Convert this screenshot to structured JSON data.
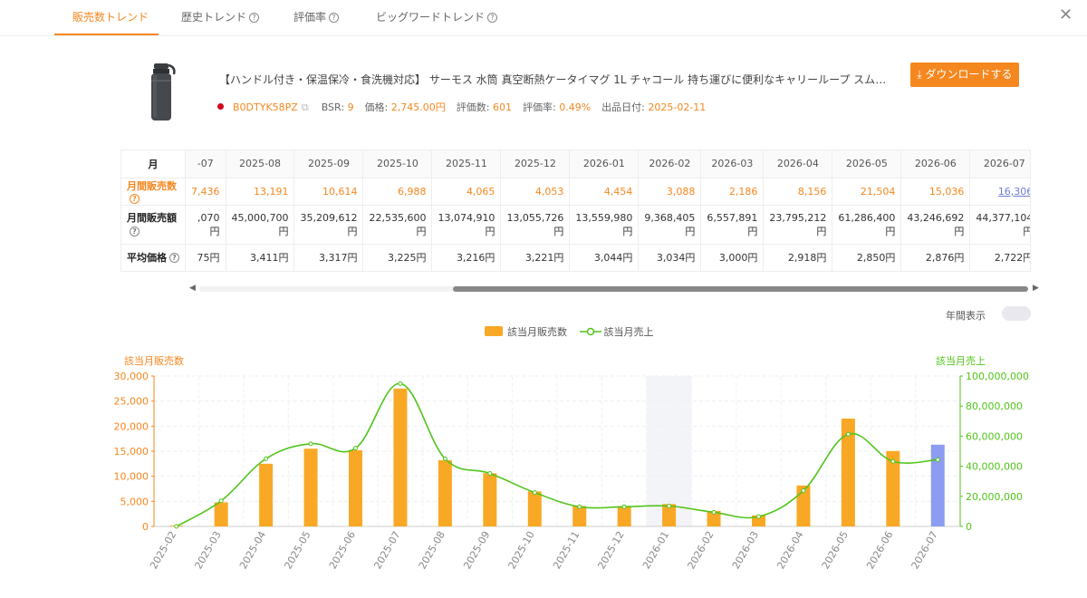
{
  "tabs": [
    {
      "label": "販売数トレンド",
      "active": true
    },
    {
      "label": "歴史トレンド",
      "active": false
    },
    {
      "label": "評価率",
      "active": false
    },
    {
      "label": "ビッグワードトレンド",
      "active": false
    }
  ],
  "product": {
    "title": "【ハンドル付き・保温保冷・食洗機対応】 サーモス 水筒 真空断熱ケータイマグ 1L チャコール 持ち運びに便利なキャリーループ スムーズに飲め...",
    "asin": "B0DTYK58PZ",
    "bsr_label": "BSR:",
    "bsr": "9",
    "price_label": "価格:",
    "price": "2,745.00円",
    "reviews_label": "評価数:",
    "reviews": "601",
    "rating_rate_label": "評価率:",
    "rating_rate": "0.49%",
    "listing_date_label": "出品日付:",
    "listing_date": "2025-02-11"
  },
  "download_label": "ダウンロードする",
  "table": {
    "header_label": "月",
    "months": [
      "-07",
      "2025-08",
      "2025-09",
      "2025-10",
      "2025-11",
      "2025-12",
      "2026-01",
      "2026-02",
      "2026-03",
      "2026-04",
      "2026-05",
      "2026-06",
      "2026-07"
    ],
    "rows": [
      {
        "label": "月間販売数",
        "values": [
          "7,436",
          "13,191",
          "10,614",
          "6,988",
          "4,065",
          "4,053",
          "4,454",
          "3,088",
          "2,186",
          "8,156",
          "21,504",
          "15,036",
          "16,306"
        ]
      },
      {
        "label": "月間販売額",
        "values": [
          ",070",
          "45,000,700",
          "35,209,612",
          "22,535,600",
          "13,074,910",
          "13,055,726",
          "13,559,980",
          "9,368,405",
          "6,557,891",
          "23,795,212",
          "61,286,400",
          "43,246,692",
          "44,377,104"
        ],
        "unit": "円"
      },
      {
        "label": "平均価格",
        "values": [
          "75円",
          "3,411円",
          "3,317円",
          "3,225円",
          "3,216円",
          "3,221円",
          "3,044円",
          "3,034円",
          "3,000円",
          "2,918円",
          "2,850円",
          "2,876円",
          "2,722円"
        ]
      }
    ]
  },
  "yearly_label": "年間表示",
  "legend": {
    "bar": "該当月販売数",
    "line": "該当月売上"
  },
  "colors": {
    "accent": "#f5871f",
    "bar": "#f9a825",
    "bar_current": "#8c9cf0",
    "line": "#52c41a",
    "highlight": "#f3f4f8"
  },
  "chart_data": {
    "type": "bar",
    "categories": [
      "2025-02",
      "2025-03",
      "2025-04",
      "2025-05",
      "2025-06",
      "2025-07",
      "2025-08",
      "2025-09",
      "2025-10",
      "2025-11",
      "2025-12",
      "2026-01",
      "2026-02",
      "2026-03",
      "2026-04",
      "2026-05",
      "2026-06",
      "2026-07"
    ],
    "series": [
      {
        "name": "該当月販売数",
        "type": "bar",
        "axis": "left",
        "values": [
          150,
          4800,
          12500,
          15500,
          15200,
          27500,
          13191,
          10614,
          6988,
          4065,
          4053,
          4454,
          3088,
          2186,
          8156,
          21504,
          15036,
          16306
        ]
      },
      {
        "name": "該当月売上",
        "type": "line",
        "axis": "right",
        "values": [
          0,
          17000000,
          45000000,
          55000000,
          52000000,
          95000000,
          45000700,
          35209612,
          22535600,
          13074910,
          13055726,
          13559980,
          9368405,
          6557891,
          23795212,
          61286400,
          43246692,
          44377104
        ]
      }
    ],
    "ylabel": "該当月販売数",
    "ylabel_right": "該当月売上",
    "ylim": [
      0,
      30000
    ],
    "ylim_right": [
      0,
      100000000
    ],
    "yticks": [
      "0",
      "5,000",
      "10,000",
      "15,000",
      "20,000",
      "25,000",
      "30,000"
    ],
    "yticks_right": [
      "0",
      "20,000,000",
      "40,000,000",
      "60,000,000",
      "80,000,000",
      "100,000,000"
    ],
    "highlighted_category": "2026-01",
    "grid": true,
    "legend": "top"
  }
}
